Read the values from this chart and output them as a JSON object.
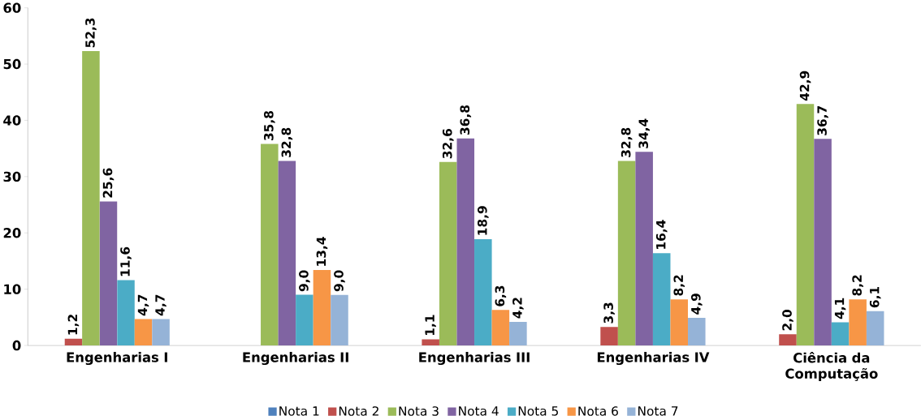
{
  "chart_data": {
    "type": "bar",
    "categories": [
      "Engenharias I",
      "Engenharias II",
      "Engenharias III",
      "Engenharias IV",
      "Ciência da Computação"
    ],
    "series": [
      {
        "name": "Nota 1",
        "color": "#4f81bd",
        "values": [
          null,
          null,
          null,
          null,
          null
        ],
        "value_labels": [
          null,
          null,
          null,
          null,
          null
        ]
      },
      {
        "name": "Nota 2",
        "color": "#c0504d",
        "values": [
          1.2,
          null,
          1.1,
          3.3,
          2.0
        ],
        "value_labels": [
          "1,2",
          null,
          "1,1",
          "3,3",
          "2,0"
        ]
      },
      {
        "name": "Nota 3",
        "color": "#9bbb59",
        "values": [
          52.3,
          35.8,
          32.6,
          32.8,
          42.9
        ],
        "value_labels": [
          "52,3",
          "35,8",
          "32,6",
          "32,8",
          "42,9"
        ]
      },
      {
        "name": "Nota 4",
        "color": "#8064a2",
        "values": [
          25.6,
          32.8,
          36.8,
          34.4,
          36.7
        ],
        "value_labels": [
          "25,6",
          "32,8",
          "36,8",
          "34,4",
          "36,7"
        ]
      },
      {
        "name": "Nota 5",
        "color": "#4bacc6",
        "values": [
          11.6,
          9.0,
          18.9,
          16.4,
          4.1
        ],
        "value_labels": [
          "11,6",
          "9,0",
          "18,9",
          "16,4",
          "4,1"
        ]
      },
      {
        "name": "Nota 6",
        "color": "#f79646",
        "values": [
          4.7,
          13.4,
          6.3,
          8.2,
          8.2
        ],
        "value_labels": [
          "4,7",
          "13,4",
          "6,3",
          "8,2",
          "8,2"
        ]
      },
      {
        "name": "Nota 7",
        "color": "#95b3d7",
        "values": [
          4.7,
          9.0,
          4.2,
          4.9,
          6.1
        ],
        "value_labels": [
          "4,7",
          "9,0",
          "4,2",
          "4,9",
          "6,1"
        ]
      }
    ],
    "ylim": [
      0,
      60
    ],
    "yticks": [
      0,
      10,
      20,
      30,
      40,
      50,
      60
    ],
    "legend": "bottom"
  }
}
